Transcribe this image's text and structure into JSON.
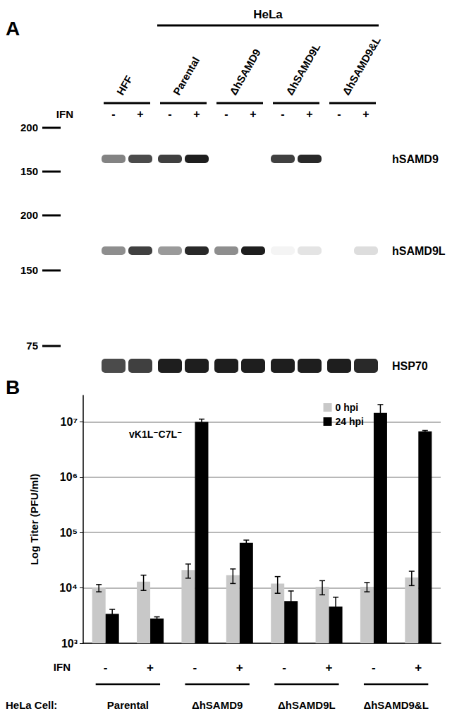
{
  "blot": {
    "panel": "A",
    "treatment_label": "IFN",
    "treatments": [
      "-",
      "+"
    ],
    "groups": [
      {
        "name": "HFF"
      },
      {
        "name": "Parental",
        "cell": "HeLa"
      },
      {
        "name": "ΔhSAMD9",
        "cell": "HeLa"
      },
      {
        "name": "ΔhSAMD9L",
        "cell": "HeLa"
      },
      {
        "name": "ΔhSAMD9&L",
        "cell": "HeLa"
      }
    ],
    "rows": [
      {
        "protein": "hSAMD9",
        "markers": [
          200,
          150
        ],
        "intensity": [
          0.55,
          0.8,
          0.85,
          1.0,
          0,
          0,
          0.85,
          0.95,
          0,
          0
        ]
      },
      {
        "protein": "hSAMD9L",
        "markers": [
          200,
          150
        ],
        "intensity": [
          0.5,
          0.85,
          0.45,
          0.95,
          0.5,
          1.0,
          0.05,
          0.12,
          0,
          0.15
        ]
      },
      {
        "protein": "HSP70",
        "markers": [
          75
        ],
        "intensity": [
          0.8,
          0.85,
          1.0,
          1.0,
          1.0,
          1.0,
          1.0,
          1.0,
          1.0,
          0.95
        ]
      }
    ]
  },
  "chart_data": {
    "type": "bar",
    "panel": "B",
    "title": "vK1L⁻C7L⁻",
    "categories": [
      "-",
      "+",
      "-",
      "+",
      "-",
      "+",
      "-",
      "+"
    ],
    "x_label": "IFN",
    "group_label": "HeLa Cell:",
    "groups": [
      "Parental",
      "ΔhSAMD9",
      "ΔhSAMD9L",
      "ΔhSAMD9&L"
    ],
    "series": [
      {
        "name": "0 hpi",
        "color": "#c8c8c8",
        "values": [
          10000,
          13000,
          21000,
          17000,
          12000,
          10500,
          10500,
          15500
        ],
        "errors": [
          1500,
          4000,
          6000,
          5000,
          4000,
          3000,
          2000,
          4500
        ]
      },
      {
        "name": "24 hpi",
        "color": "#000000",
        "values": [
          3400,
          2800,
          10000000,
          65000,
          5800,
          4600,
          14500000,
          6700000
        ],
        "errors": [
          700,
          200,
          1200000,
          8000,
          3000,
          2200,
          6000000,
          300000
        ]
      }
    ],
    "ylabel": "Log Titer (PFU/ml)",
    "log": "y",
    "ylim": [
      1000,
      30000000
    ],
    "yticks": [
      {
        "value": 1000,
        "label": "10³"
      },
      {
        "value": 10000,
        "label": "10⁴"
      },
      {
        "value": 100000,
        "label": "10⁵"
      },
      {
        "value": 1000000,
        "label": "10⁶"
      },
      {
        "value": 10000000,
        "label": "10⁷"
      }
    ],
    "grid": true,
    "legend": "top-right"
  }
}
